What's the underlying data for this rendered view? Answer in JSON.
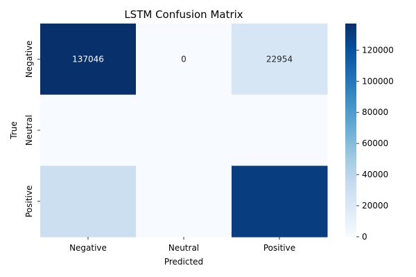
{
  "chart_data": {
    "type": "heatmap",
    "title": "LSTM Confusion Matrix",
    "xlabel": "Predicted",
    "ylabel": "True",
    "x_categories": [
      "Negative",
      "Neutral",
      "Positive"
    ],
    "y_categories": [
      "Negative",
      "Neutral",
      "Positive"
    ],
    "values": [
      [
        137046,
        0,
        22954
      ],
      [
        0,
        0,
        0
      ],
      [
        30000,
        0,
        130000
      ]
    ],
    "cell_labels": [
      [
        "137046",
        "0",
        "22954"
      ],
      [
        "",
        "",
        ""
      ],
      [
        "",
        "",
        ""
      ]
    ],
    "colorbar": {
      "min": 0,
      "max": 137046,
      "ticks": [
        0,
        20000,
        40000,
        60000,
        80000,
        100000,
        120000
      ],
      "colormap": "Blues"
    }
  }
}
